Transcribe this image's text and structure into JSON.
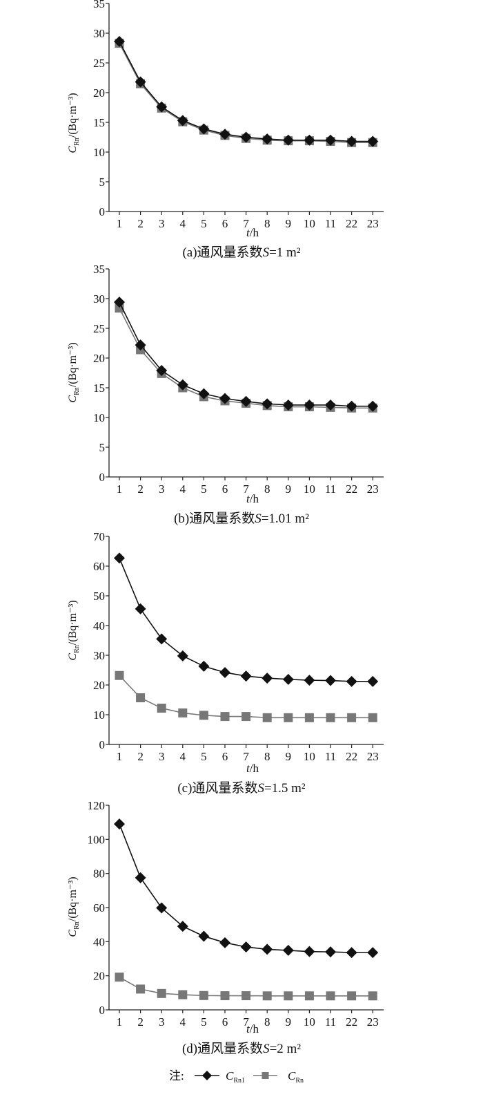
{
  "colors": {
    "series_c_rn1": "#111111",
    "series_c_rn": "#777777",
    "axis": "#222222"
  },
  "legend": {
    "prefix": "注:",
    "items": [
      {
        "main": "C",
        "sub": "Rn1",
        "marker": "diamond",
        "color": "#111111"
      },
      {
        "main": "C",
        "sub": "Rn",
        "marker": "square",
        "color": "#777777"
      }
    ]
  },
  "chart_data": [
    {
      "type": "line",
      "caption": "(a)通风量系数S=1 m²",
      "xlabel": "t/h",
      "ylabel": {
        "main": "C",
        "sub": "Rn",
        "rest": "/(Bq·m⁻³)"
      },
      "categories": [
        "1",
        "2",
        "3",
        "4",
        "5",
        "6",
        "7",
        "8",
        "9",
        "10",
        "11",
        "22",
        "23"
      ],
      "ylim": [
        0,
        35
      ],
      "yticks": [
        0,
        5,
        10,
        15,
        20,
        25,
        30,
        35
      ],
      "grid": false,
      "series": [
        {
          "name": "C_Rn1",
          "marker": "diamond",
          "values": [
            28.6,
            21.8,
            17.6,
            15.3,
            13.9,
            13.0,
            12.5,
            12.2,
            12.0,
            12.0,
            12.0,
            11.8,
            11.8
          ]
        },
        {
          "name": "C_Rn",
          "marker": "square",
          "values": [
            28.3,
            21.5,
            17.4,
            15.1,
            13.7,
            12.8,
            12.3,
            12.0,
            11.9,
            11.9,
            11.8,
            11.6,
            11.6
          ]
        }
      ]
    },
    {
      "type": "line",
      "caption": "(b)通风量系数S=1.01 m²",
      "xlabel": "t/h",
      "ylabel": {
        "main": "C",
        "sub": "Rn",
        "rest": "/(Bq·m⁻³)"
      },
      "categories": [
        "1",
        "2",
        "3",
        "4",
        "5",
        "6",
        "7",
        "8",
        "9",
        "10",
        "11",
        "22",
        "23"
      ],
      "ylim": [
        0,
        35
      ],
      "yticks": [
        0,
        5,
        10,
        15,
        20,
        25,
        30,
        35
      ],
      "grid": false,
      "series": [
        {
          "name": "C_Rn1",
          "marker": "diamond",
          "values": [
            29.4,
            22.2,
            17.9,
            15.5,
            14.0,
            13.2,
            12.7,
            12.3,
            12.1,
            12.1,
            12.1,
            11.9,
            11.9
          ]
        },
        {
          "name": "C_Rn",
          "marker": "square",
          "values": [
            28.4,
            21.4,
            17.4,
            15.0,
            13.5,
            12.8,
            12.4,
            12.0,
            11.8,
            11.8,
            11.7,
            11.6,
            11.6
          ]
        }
      ]
    },
    {
      "type": "line",
      "caption": "(c)通风量系数S=1.5 m²",
      "xlabel": "t/h",
      "ylabel": {
        "main": "C",
        "sub": "Rn",
        "rest": "/(Bq·m⁻³)"
      },
      "categories": [
        "1",
        "2",
        "3",
        "4",
        "5",
        "6",
        "7",
        "8",
        "9",
        "10",
        "11",
        "22",
        "23"
      ],
      "ylim": [
        0,
        70
      ],
      "yticks": [
        0,
        10,
        20,
        30,
        40,
        50,
        60,
        70
      ],
      "grid": false,
      "series": [
        {
          "name": "C_Rn1",
          "marker": "diamond",
          "values": [
            62.7,
            45.6,
            35.5,
            29.8,
            26.3,
            24.2,
            23.0,
            22.3,
            21.9,
            21.6,
            21.5,
            21.2,
            21.2
          ]
        },
        {
          "name": "C_Rn",
          "marker": "square",
          "values": [
            23.2,
            15.7,
            12.2,
            10.6,
            9.8,
            9.4,
            9.4,
            9.0,
            9.0,
            9.0,
            9.0,
            9.0,
            9.0
          ]
        }
      ]
    },
    {
      "type": "line",
      "caption": "(d)通风量系数S=2 m²",
      "xlabel": "t/h",
      "ylabel": {
        "main": "C",
        "sub": "Rn",
        "rest": "/(Bq·m⁻³)"
      },
      "categories": [
        "1",
        "2",
        "3",
        "4",
        "5",
        "6",
        "7",
        "8",
        "9",
        "10",
        "11",
        "22",
        "23"
      ],
      "ylim": [
        0,
        120
      ],
      "yticks": [
        0,
        20,
        40,
        60,
        80,
        100,
        120
      ],
      "grid": false,
      "series": [
        {
          "name": "C_Rn1",
          "marker": "diamond",
          "values": [
            109.0,
            77.5,
            59.8,
            49.0,
            43.2,
            39.4,
            36.9,
            35.5,
            34.9,
            34.2,
            34.0,
            33.6,
            33.6
          ]
        },
        {
          "name": "C_Rn",
          "marker": "square",
          "values": [
            19.2,
            12.2,
            9.6,
            8.9,
            8.4,
            8.3,
            8.3,
            8.2,
            8.2,
            8.2,
            8.2,
            8.2,
            8.2
          ]
        }
      ]
    }
  ]
}
